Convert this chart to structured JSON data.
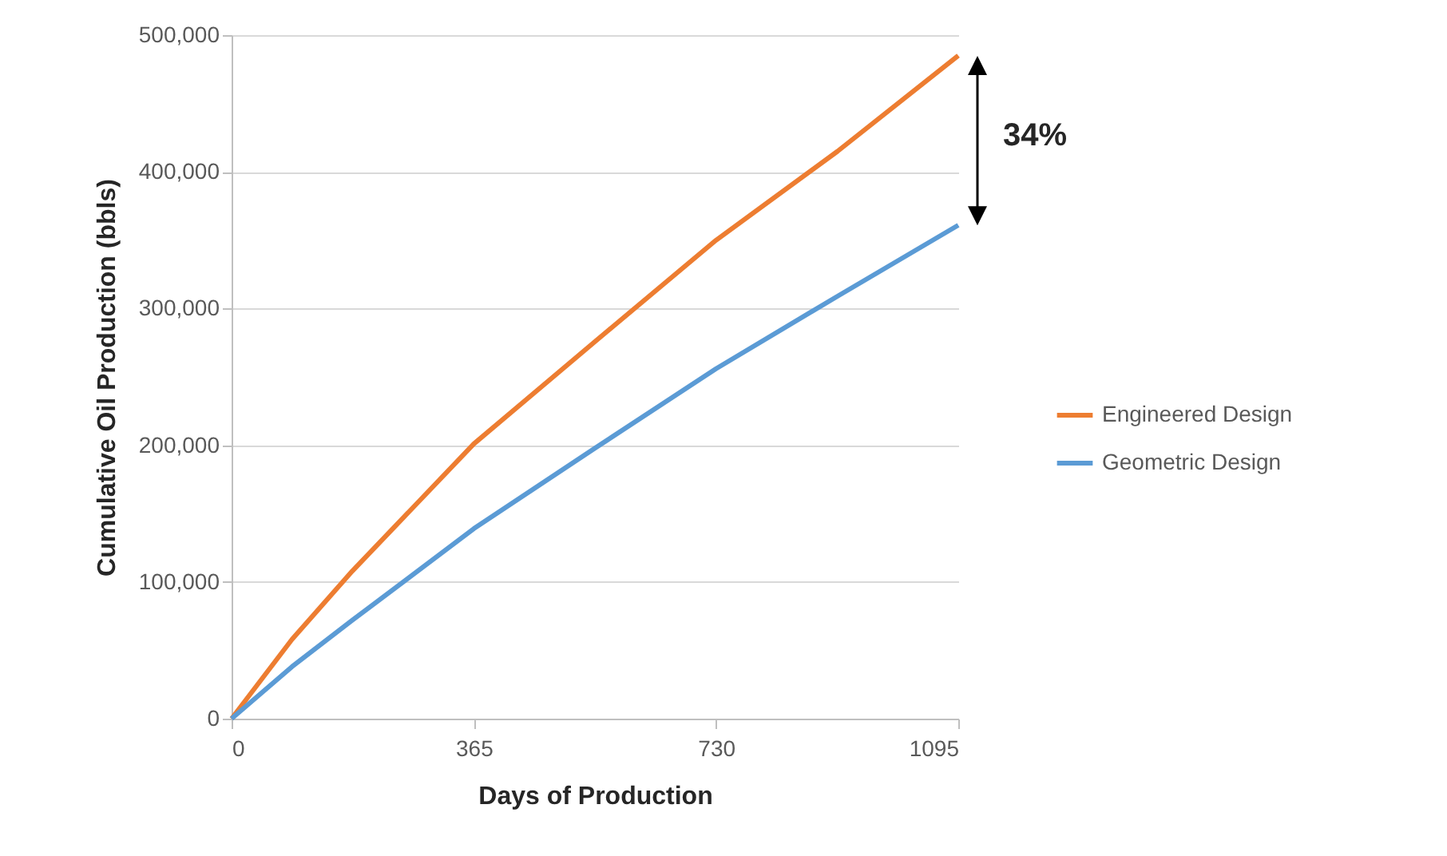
{
  "chart_data": {
    "type": "line",
    "xlabel": "Days of Production",
    "ylabel": "Cumulative Oil Production (bbls)",
    "x": [
      0,
      91,
      182,
      365,
      548,
      730,
      913,
      1095
    ],
    "series": [
      {
        "name": "Engineered Design",
        "color": "#ed7d31",
        "values": [
          0,
          58000,
          108000,
          201000,
          276000,
          350000,
          415000,
          485000
        ]
      },
      {
        "name": "Geometric Design",
        "color": "#5b9bd5",
        "values": [
          0,
          38000,
          72000,
          139000,
          198000,
          256000,
          309000,
          361000
        ]
      }
    ],
    "xlim": [
      0,
      1095
    ],
    "xticks": [
      0,
      365,
      730,
      1095
    ],
    "ylim": [
      0,
      500000
    ],
    "yticks": [
      0,
      {
        "value": 100000,
        "label": "100,000"
      },
      {
        "value": 200000,
        "label": "200,000"
      },
      {
        "value": 300000,
        "label": "300,000"
      },
      {
        "value": 400000,
        "label": "400,000"
      },
      {
        "value": 500000,
        "label": "500,000"
      }
    ],
    "grid": "y",
    "legend": "right",
    "marker": "none",
    "line_style": "solid",
    "annotations": [
      "34%"
    ]
  }
}
